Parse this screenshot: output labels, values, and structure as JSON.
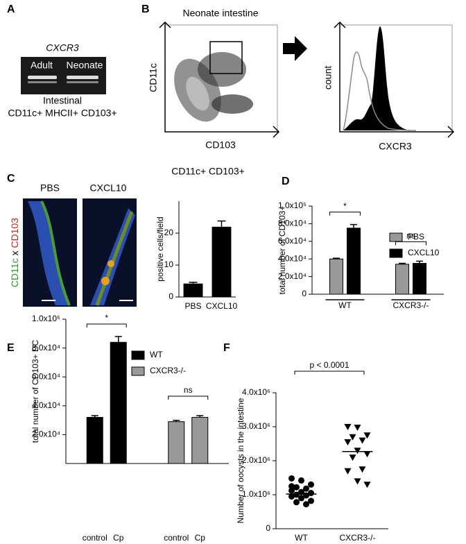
{
  "panels": {
    "a": {
      "label": "A",
      "gene": "CXCR3",
      "lanes": [
        "Adult",
        "Neonate"
      ],
      "caption": [
        "Intestinal",
        "CD11c+ MHCII+ CD103+"
      ]
    },
    "b": {
      "label": "B",
      "title": "Neonate intestine",
      "dot_y": "CD11c",
      "dot_x": "CD103",
      "hist_y": "count",
      "hist_x": "CXCR3"
    },
    "c": {
      "label": "C",
      "images": [
        "PBS",
        "CXCL10"
      ],
      "stain": [
        "CD11c",
        "x",
        "CD103"
      ]
    },
    "d": {
      "label": "D"
    },
    "e": {
      "label": "E"
    },
    "f": {
      "label": "F"
    }
  },
  "chart_data": [
    {
      "type": "bar",
      "title": "CD11c+ CD103+",
      "ylabel": "positive cells/field",
      "categories": [
        "PBS",
        "CXCL10"
      ],
      "values": [
        4.2,
        22
      ],
      "errors": [
        0.4,
        1.8
      ],
      "color": "#000000",
      "ylim": [
        0,
        30
      ],
      "yticks": [
        0,
        10,
        20
      ]
    },
    {
      "type": "grouped_bar",
      "ylabel": "total number of CD103+",
      "categories": [
        "WT",
        "CXCR3-/-"
      ],
      "group_by": "categories",
      "series": [
        {
          "name": "PBS",
          "color": "#999999",
          "values": [
            40000,
            34000
          ],
          "errors": [
            800,
            1000
          ]
        },
        {
          "name": "CXCL10",
          "color": "#000000",
          "values": [
            75000,
            35000
          ],
          "errors": [
            4000,
            2500
          ]
        }
      ],
      "annotations": [
        "*",
        "ns"
      ],
      "ylim": [
        0,
        100000
      ],
      "yticks": [
        0,
        {
          "value": 20000,
          "label": "2.0x10⁴"
        },
        {
          "value": 40000,
          "label": "4.0x10⁴"
        },
        {
          "value": 60000,
          "label": "6.0x10⁴"
        },
        {
          "value": 80000,
          "label": "8.0x10⁴"
        },
        {
          "value": 100000,
          "label": "1.0x10⁵"
        }
      ]
    },
    {
      "type": "grouped_bar",
      "ylabel": "total number of CD103+ DC",
      "categories": [
        "control",
        "Cp"
      ],
      "group_by": "series",
      "series": [
        {
          "name": "WT",
          "color": "#000000",
          "values": [
            32000,
            84000
          ],
          "errors": [
            1200,
            4000
          ]
        },
        {
          "name": "CXCR3-/-",
          "color": "#999999",
          "values": [
            29000,
            32000
          ],
          "errors": [
            900,
            1200
          ]
        }
      ],
      "annotations": [
        "*",
        "ns"
      ],
      "ylim": [
        0,
        100000
      ],
      "yticks": [
        {
          "value": 20000,
          "label": "2.0x10⁴"
        },
        {
          "value": 40000,
          "label": "4.0x10⁴"
        },
        {
          "value": 60000,
          "label": "6.0x10⁴"
        },
        {
          "value": 80000,
          "label": "8.0x10⁴"
        },
        {
          "value": 100000,
          "label": "1.0x10⁵"
        }
      ]
    },
    {
      "type": "strip",
      "ylabel": "Number of oocysts in the intestine",
      "categories": [
        "WT",
        "CXCR3-/-"
      ],
      "markers": [
        "circle",
        "triangle-down"
      ],
      "color": "#000000",
      "groups": [
        {
          "values": [
            1480000,
            1420000,
            1300000,
            1220000,
            1180000,
            1120000,
            1080000,
            1050000,
            1000000,
            980000,
            950000,
            900000,
            820000,
            780000,
            720000,
            1250000
          ],
          "median": 1020000
        },
        {
          "values": [
            3000000,
            2980000,
            2750000,
            2700000,
            2600000,
            2550000,
            2300000,
            2200000,
            2100000,
            1750000,
            1700000,
            1400000,
            1300000
          ],
          "median": 2270000
        }
      ],
      "annotations": [
        "p < 0.0001"
      ],
      "ylim": [
        0,
        4000000
      ],
      "yticks": [
        0,
        {
          "value": 1000000,
          "label": "1.0x10⁶"
        },
        {
          "value": 2000000,
          "label": "2.0x10⁶"
        },
        {
          "value": 3000000,
          "label": "3.0x10⁶"
        },
        {
          "value": 4000000,
          "label": "4.0x10⁶"
        }
      ]
    }
  ]
}
